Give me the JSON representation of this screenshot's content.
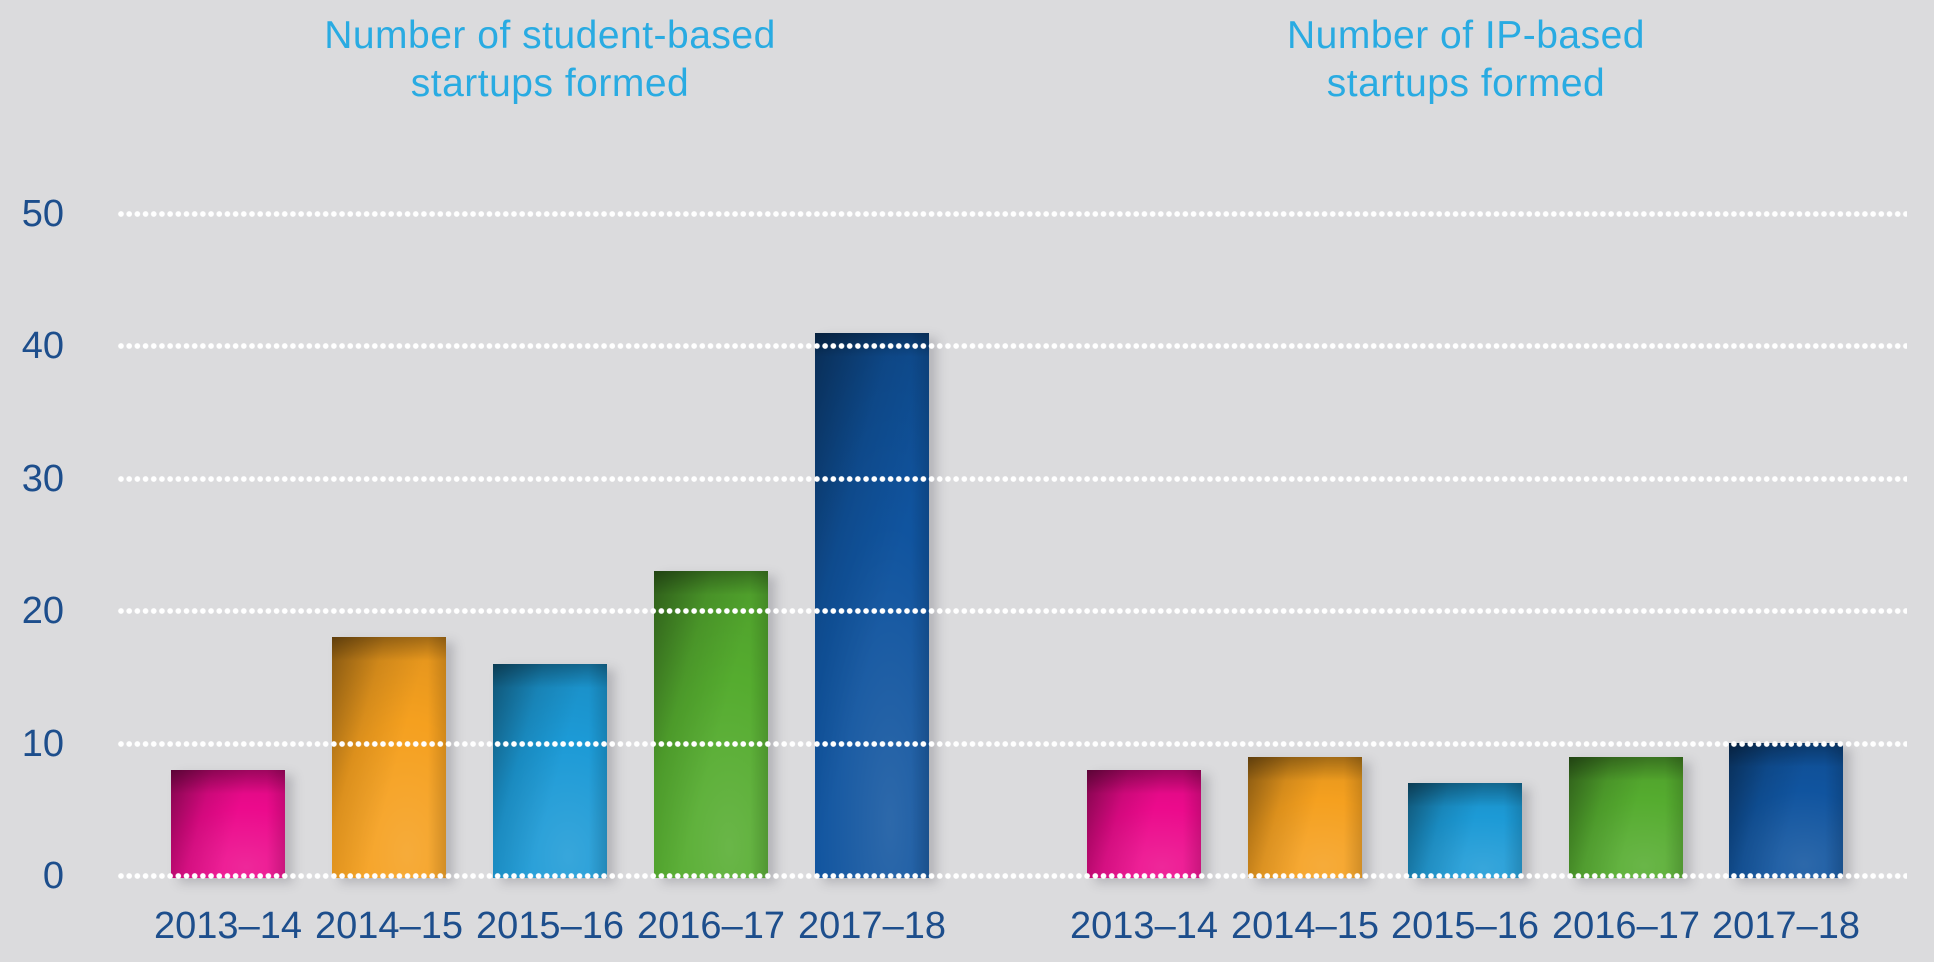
{
  "colors": {
    "background": "#DBDBDD",
    "title": "#29ABE2",
    "axis_labels": "#1D4E8C",
    "grid_dots": "#FFFFFF",
    "bar_palette": [
      "#EC0A8C",
      "#F5A01F",
      "#1C9AD6",
      "#55AC2F",
      "#10549F"
    ]
  },
  "charts": [
    {
      "title_line1": "Number of student-based",
      "title_line2": "startups formed"
    },
    {
      "title_line1": "Number of IP-based",
      "title_line2": "startups formed"
    }
  ],
  "chart_data": [
    {
      "type": "bar",
      "title": "Number of student-based startups formed",
      "categories": [
        "2013–14",
        "2014–15",
        "2015–16",
        "2016–17",
        "2017–18"
      ],
      "values": [
        8,
        18,
        16,
        23,
        41
      ],
      "bar_colors": [
        "#EC0A8C",
        "#F5A01F",
        "#1C9AD6",
        "#55AC2F",
        "#10549F"
      ],
      "xlabel": "",
      "ylabel": "",
      "ylim": [
        0,
        50
      ],
      "yticks": [
        0,
        10,
        20,
        30,
        40,
        50
      ],
      "grid": "horizontal-dotted-white",
      "legend": "none"
    },
    {
      "type": "bar",
      "title": "Number of IP-based startups formed",
      "categories": [
        "2013–14",
        "2014–15",
        "2015–16",
        "2016–17",
        "2017–18"
      ],
      "values": [
        8,
        9,
        7,
        9,
        10
      ],
      "bar_colors": [
        "#EC0A8C",
        "#F5A01F",
        "#1C9AD6",
        "#55AC2F",
        "#10549F"
      ],
      "xlabel": "",
      "ylabel": "",
      "ylim": [
        0,
        50
      ],
      "yticks": [
        0,
        10,
        20,
        30,
        40,
        50
      ],
      "grid": "horizontal-dotted-white",
      "legend": "none"
    }
  ]
}
